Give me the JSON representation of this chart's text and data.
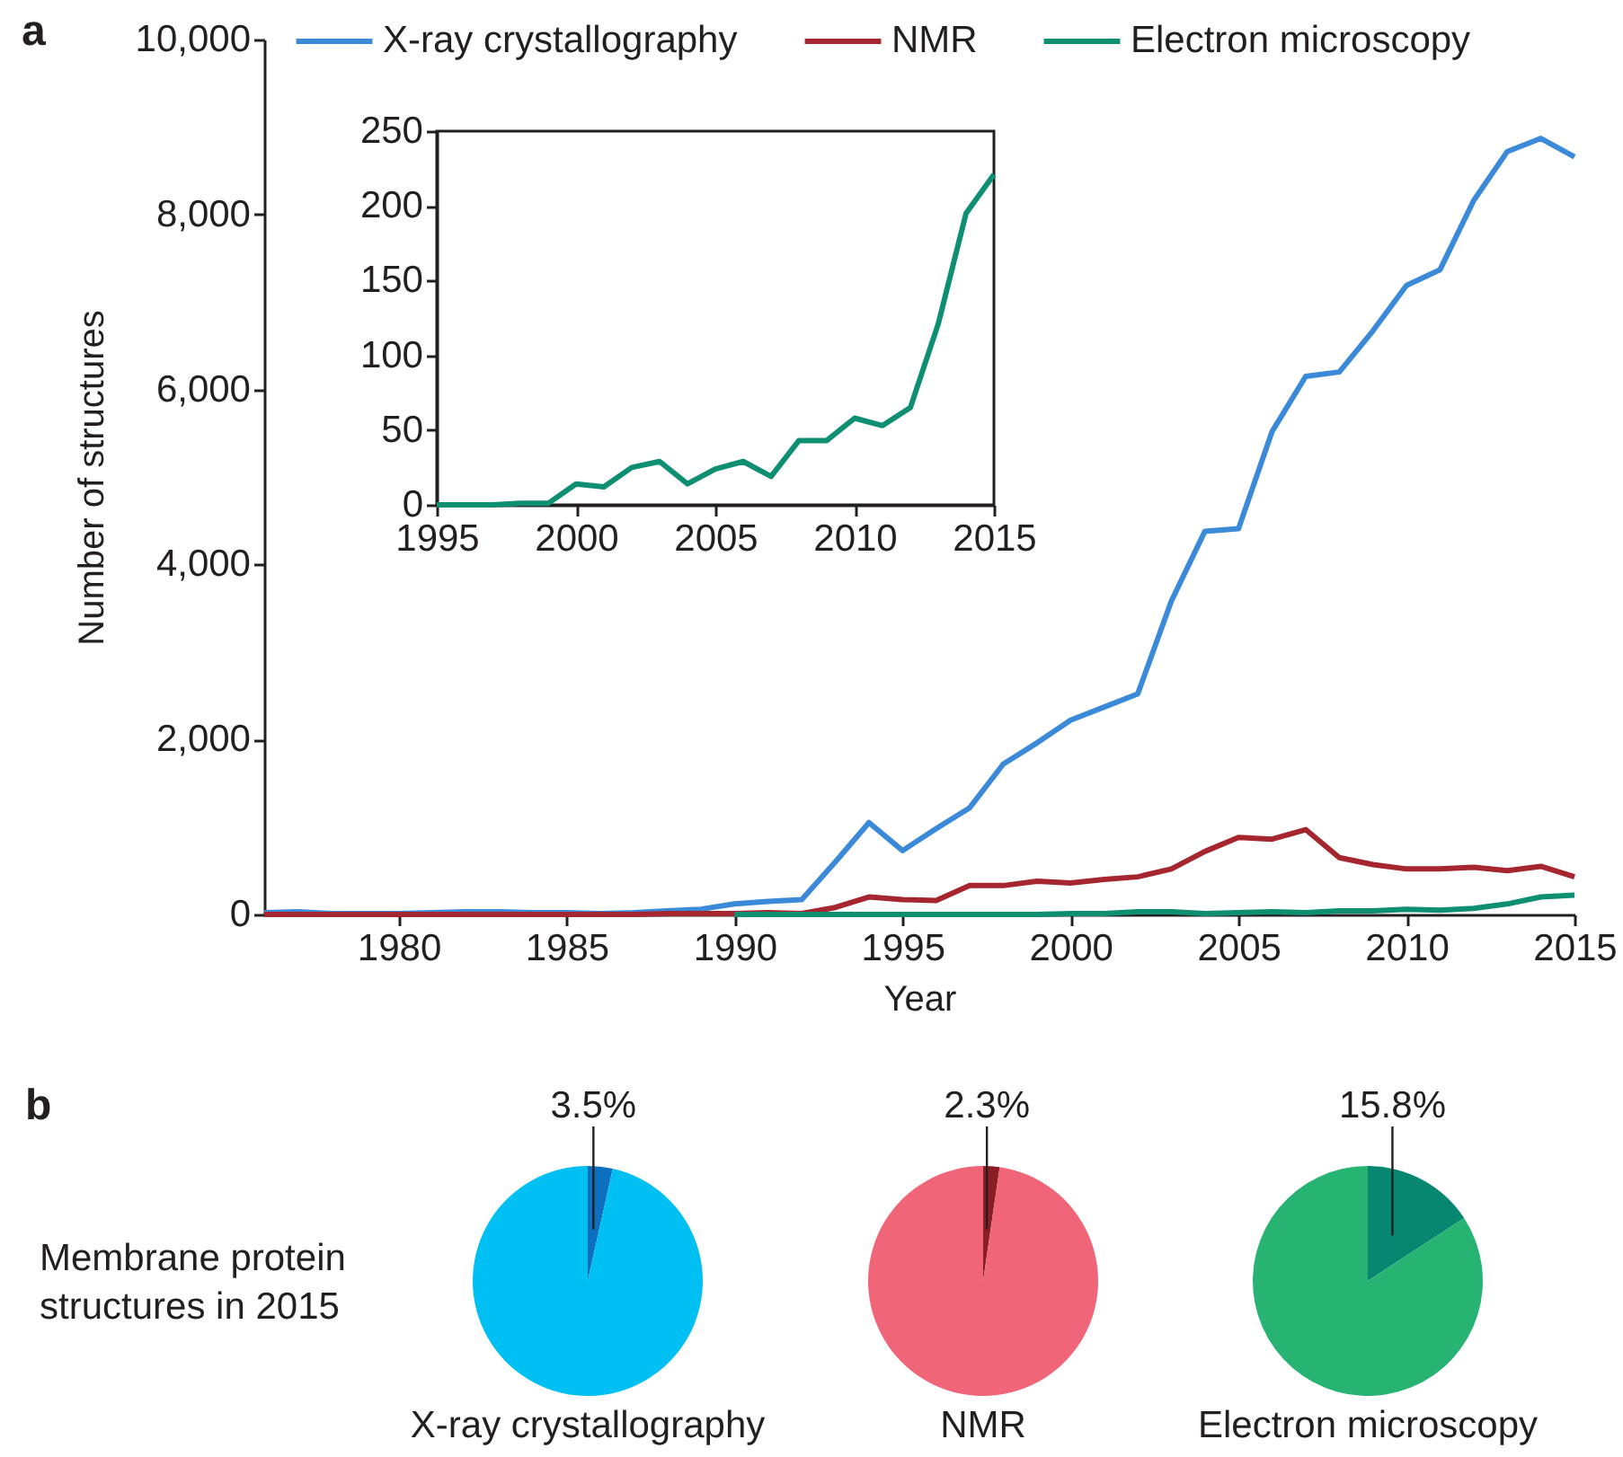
{
  "chart_data": [
    {
      "type": "line",
      "xlabel": "Year",
      "ylabel": "Number of structures",
      "annotations": [
        "a"
      ],
      "xlim": [
        1976,
        2015
      ],
      "ylim": [
        0,
        10000
      ],
      "xticks": [
        1980,
        1985,
        1990,
        1995,
        2000,
        2005,
        2010,
        2015
      ],
      "yticks": [
        0,
        {
          "value": 2000,
          "label": "2,000"
        },
        {
          "value": 4000,
          "label": "4,000"
        },
        {
          "value": 6000,
          "label": "6,000"
        },
        {
          "value": 8000,
          "label": "8,000"
        },
        {
          "value": 10000,
          "label": "10,000"
        }
      ],
      "legend": "top",
      "series": [
        {
          "name": "X-ray crystallography",
          "color": "#3b8ad9",
          "x": [
            1976,
            1977,
            1978,
            1979,
            1980,
            1981,
            1982,
            1983,
            1984,
            1985,
            1986,
            1987,
            1988,
            1989,
            1990,
            1991,
            1992,
            1993,
            1994,
            1995,
            1996,
            1997,
            1998,
            1999,
            2000,
            2001,
            2002,
            2003,
            2004,
            2005,
            2006,
            2007,
            2008,
            2009,
            2010,
            2011,
            2012,
            2013,
            2014,
            2015
          ],
          "values": [
            20,
            30,
            10,
            10,
            10,
            20,
            30,
            30,
            20,
            20,
            10,
            20,
            40,
            60,
            120,
            150,
            170,
            600,
            1050,
            730,
            980,
            1220,
            1720,
            1960,
            2220,
            2370,
            2520,
            3580,
            4380,
            4410,
            5520,
            6150,
            6200,
            6670,
            7190,
            7370,
            8160,
            8720,
            8870,
            8660
          ]
        },
        {
          "name": "NMR",
          "color": "#a5262f",
          "x": [
            1976,
            1977,
            1978,
            1979,
            1980,
            1981,
            1982,
            1983,
            1984,
            1985,
            1986,
            1987,
            1988,
            1989,
            1990,
            1991,
            1992,
            1993,
            1994,
            1995,
            1996,
            1997,
            1998,
            1999,
            2000,
            2001,
            2002,
            2003,
            2004,
            2005,
            2006,
            2007,
            2008,
            2009,
            2010,
            2011,
            2012,
            2013,
            2014,
            2015
          ],
          "values": [
            0,
            0,
            0,
            0,
            0,
            0,
            0,
            0,
            0,
            0,
            0,
            0,
            10,
            10,
            10,
            20,
            10,
            80,
            200,
            170,
            160,
            330,
            330,
            380,
            360,
            400,
            430,
            520,
            720,
            880,
            860,
            970,
            650,
            570,
            520,
            520,
            540,
            500,
            550,
            430
          ]
        },
        {
          "name": "Electron microscopy",
          "color": "#0e8f72",
          "x": [
            1990,
            1991,
            1992,
            1993,
            1994,
            1995,
            1996,
            1997,
            1998,
            1999,
            2000,
            2001,
            2002,
            2003,
            2004,
            2005,
            2006,
            2007,
            2008,
            2009,
            2010,
            2011,
            2012,
            2013,
            2014,
            2015
          ],
          "values": [
            0,
            0,
            0,
            0,
            0,
            0,
            0,
            0,
            0,
            0,
            10,
            10,
            30,
            30,
            10,
            20,
            30,
            20,
            40,
            40,
            60,
            50,
            70,
            120,
            200,
            220
          ]
        }
      ]
    },
    {
      "type": "line",
      "xlim": [
        1995,
        2015
      ],
      "ylim": [
        0,
        250
      ],
      "xticks": [
        1995,
        2000,
        2005,
        2010,
        2015
      ],
      "yticks": [
        0,
        50,
        100,
        150,
        200,
        250
      ],
      "series": [
        {
          "color": "#0e8f72",
          "x": [
            1995,
            1996,
            1997,
            1998,
            1999,
            2000,
            2001,
            2002,
            2003,
            2004,
            2005,
            2006,
            2007,
            2008,
            2009,
            2010,
            2011,
            2012,
            2013,
            2014,
            2015
          ],
          "values": [
            0,
            0,
            0,
            1,
            1,
            14,
            12,
            25,
            29,
            14,
            24,
            29,
            19,
            43,
            43,
            58,
            53,
            65,
            121,
            195,
            221
          ]
        }
      ]
    },
    {
      "type": "pie",
      "title": "X-ray crystallography",
      "annotations": [
        "b",
        "Membrane protein structures in 2015"
      ],
      "categories": [
        null,
        null
      ],
      "values": [
        3.5,
        96.5
      ],
      "colors": [
        "#0d6fc0",
        "#00bff3"
      ],
      "value_labels": [
        "3.5%",
        null
      ]
    },
    {
      "type": "pie",
      "title": "NMR",
      "categories": [
        null,
        null
      ],
      "values": [
        2.3,
        97.7
      ],
      "colors": [
        "#8b1e25",
        "#f06578"
      ],
      "value_labels": [
        "2.3%",
        null
      ]
    },
    {
      "type": "pie",
      "title": "Electron microscopy",
      "categories": [
        null,
        null
      ],
      "values": [
        15.8,
        84.2
      ],
      "colors": [
        "#07876f",
        "#27b473"
      ],
      "value_labels": [
        "15.8%",
        null
      ]
    }
  ]
}
